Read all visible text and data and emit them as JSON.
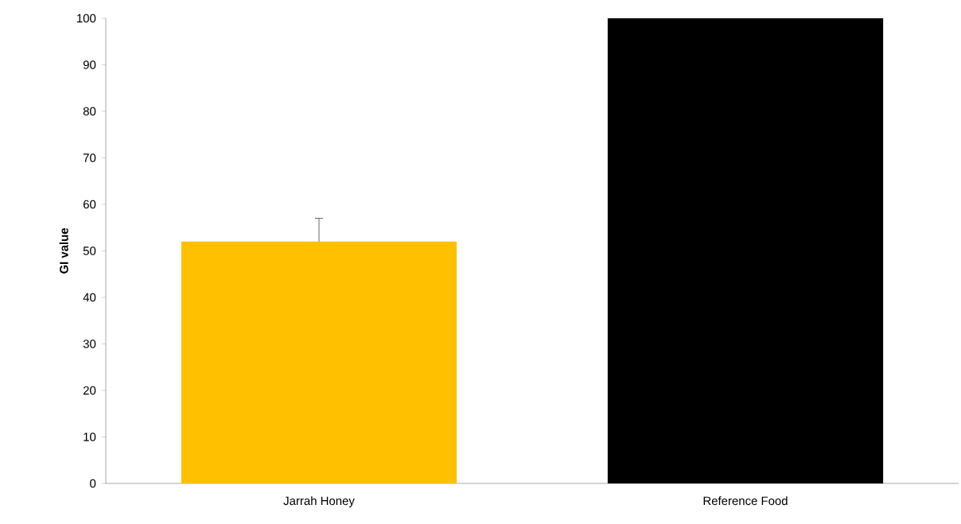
{
  "chart_data": {
    "type": "bar",
    "ylabel": "**GI value**",
    "categories": [
      "Jarrah Honey",
      "Reference Food"
    ],
    "values": [
      52,
      100
    ],
    "colors": [
      "#ffc000",
      "#000000"
    ],
    "errors": [
      [
        52,
        57
      ],
      null
    ],
    "ylim": [
      0,
      100
    ],
    "yticks": [
      0,
      10,
      20,
      30,
      40,
      50,
      60,
      70,
      80,
      90,
      100
    ],
    "grid": false
  }
}
